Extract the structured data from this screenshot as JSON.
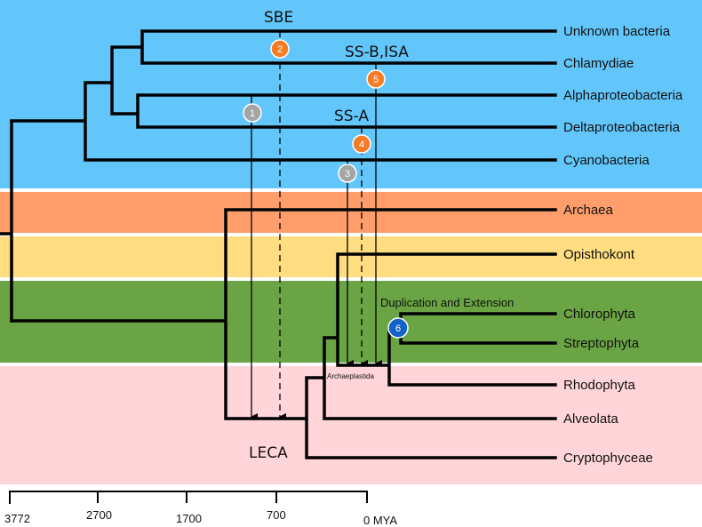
{
  "colors": {
    "bacteria": "#63c6fa",
    "archaea": "#ff9e6a",
    "opisthokont": "#ffdd80",
    "plants": "#6aa444",
    "other_eukaryotes": "#ffd5da",
    "event_orange": "#f47c24",
    "event_gray": "#a5a5a5",
    "event_blue": "#1262c7"
  },
  "taxa": [
    "Unknown bacteria",
    "Chlamydiae",
    "Alphaproteobacteria",
    "Deltaproteobacteria",
    "Cyanobacteria",
    "Archaea",
    "Opisthokont",
    "Chlorophyta",
    "Streptophyta",
    "Rhodophyta",
    "Alveolata",
    "Cryptophyceae"
  ],
  "event_labels": {
    "sbe": "SBE",
    "ssb_isa": "SS-B,ISA",
    "ssa": "SS-A",
    "dup": "Duplication and Extension",
    "leca": "LECA",
    "archaeplastida": "Archaeplastida"
  },
  "events": [
    "1",
    "2",
    "3",
    "4",
    "5",
    "6"
  ],
  "axis": {
    "ticks": [
      "3772",
      "2700",
      "1700",
      "700",
      "0 MYA"
    ]
  }
}
